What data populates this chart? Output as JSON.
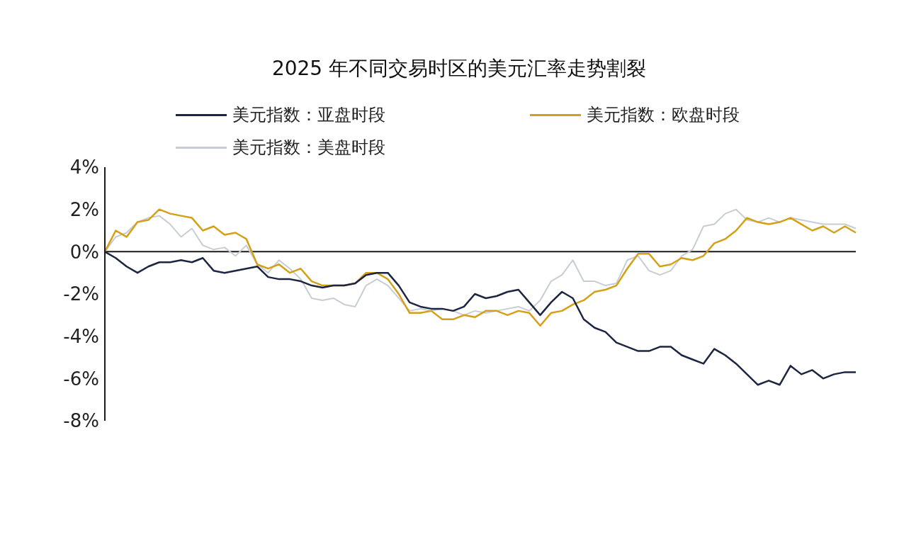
{
  "chart_data": {
    "type": "line",
    "title": "2025 年不同交易时区的美元汇率走势割裂",
    "categories": [
      null,
      null,
      null,
      null,
      null,
      null,
      null,
      null,
      null,
      null,
      null,
      null,
      null,
      null,
      null,
      null,
      null,
      null,
      null,
      null,
      null,
      null,
      null,
      null,
      null,
      null,
      null,
      null,
      null,
      null,
      null,
      null,
      null,
      null,
      null,
      null,
      null,
      null,
      null,
      null,
      null,
      null,
      null,
      null,
      null,
      null,
      null,
      null,
      null,
      null,
      null,
      null,
      null,
      null,
      null,
      null,
      null,
      null,
      null,
      null,
      null,
      null,
      null,
      null,
      null,
      null,
      null,
      null,
      null,
      null
    ],
    "series": [
      {
        "name": "美元指数：亚盘时段",
        "color": "#1c2541",
        "values": [
          0,
          -0.3,
          -0.7,
          -1.0,
          -0.7,
          -0.5,
          -0.5,
          -0.4,
          -0.5,
          -0.3,
          -0.9,
          -1.0,
          -0.9,
          -0.8,
          -0.7,
          -1.2,
          -1.3,
          -1.3,
          -1.4,
          -1.6,
          -1.7,
          -1.6,
          -1.6,
          -1.5,
          -1.1,
          -1.0,
          -1.0,
          -1.6,
          -2.4,
          -2.6,
          -2.7,
          -2.7,
          -2.8,
          -2.6,
          -2.0,
          -2.2,
          -2.1,
          -1.9,
          -1.8,
          -2.4,
          -3.0,
          -2.4,
          -1.9,
          -2.2,
          -3.2,
          -3.6,
          -3.8,
          -4.3,
          -4.5,
          -4.7,
          -4.7,
          -4.5,
          -4.5,
          -4.9,
          -5.1,
          -5.3,
          -4.6,
          -4.9,
          -5.3,
          -5.8,
          -6.3,
          -6.1,
          -6.3,
          -5.4,
          -5.8,
          -5.6,
          -6.0,
          -5.8,
          -5.7,
          -5.7
        ]
      },
      {
        "name": "美元指数：欧盘时段",
        "color": "#d4a017",
        "values": [
          0,
          1.0,
          0.7,
          1.4,
          1.5,
          2.0,
          1.8,
          1.7,
          1.6,
          1.0,
          1.2,
          0.8,
          0.9,
          0.6,
          -0.6,
          -0.8,
          -0.6,
          -1.0,
          -0.8,
          -1.4,
          -1.6,
          -1.6,
          -1.6,
          -1.5,
          -1.0,
          -1.0,
          -1.3,
          -2.0,
          -2.9,
          -2.9,
          -2.8,
          -3.2,
          -3.2,
          -3.0,
          -3.1,
          -2.8,
          -2.8,
          -3.0,
          -2.8,
          -2.9,
          -3.5,
          -2.9,
          -2.8,
          -2.5,
          -2.3,
          -1.9,
          -1.8,
          -1.6,
          -0.8,
          -0.1,
          -0.1,
          -0.7,
          -0.6,
          -0.3,
          -0.4,
          -0.2,
          0.4,
          0.6,
          1.0,
          1.6,
          1.4,
          1.3,
          1.4,
          1.6,
          1.3,
          1.0,
          1.2,
          0.9,
          1.2,
          0.9
        ]
      },
      {
        "name": "美元指数：美盘时段",
        "color": "#c8ccd4",
        "values": [
          0,
          0.7,
          0.9,
          1.4,
          1.6,
          1.7,
          1.3,
          0.7,
          1.1,
          0.3,
          0.1,
          0.2,
          -0.2,
          0.3,
          -0.6,
          -1.0,
          -0.4,
          -0.8,
          -1.3,
          -2.2,
          -2.3,
          -2.2,
          -2.5,
          -2.6,
          -1.6,
          -1.3,
          -1.6,
          -2.2,
          -2.8,
          -2.7,
          -2.8,
          -2.7,
          -2.8,
          -3.0,
          -2.8,
          -2.9,
          -2.8,
          -2.7,
          -2.6,
          -2.8,
          -2.3,
          -1.4,
          -1.1,
          -0.4,
          -1.4,
          -1.4,
          -1.6,
          -1.5,
          -0.4,
          -0.2,
          -0.9,
          -1.1,
          -0.9,
          -0.2,
          0.1,
          1.2,
          1.3,
          1.8,
          2.0,
          1.5,
          1.4,
          1.6,
          1.4,
          1.6,
          1.5,
          1.4,
          1.3,
          1.3,
          1.3,
          1.1
        ]
      }
    ],
    "ylim": [
      -8,
      4
    ],
    "yticks": [
      {
        "value": 4,
        "label": "4%"
      },
      {
        "value": 2,
        "label": "2%"
      },
      {
        "value": 0,
        "label": "0%"
      },
      {
        "value": -2,
        "label": "-2%"
      },
      {
        "value": -4,
        "label": "-4%"
      },
      {
        "value": -6,
        "label": "-6%"
      },
      {
        "value": -8,
        "label": "-8%"
      }
    ],
    "ref_lines": [
      {
        "axis": "y",
        "value": 0,
        "color": "#1a1a1a"
      }
    ],
    "tick_labels": "y",
    "grid": false,
    "legend": "top",
    "marker": "none",
    "line_style": "solid"
  }
}
